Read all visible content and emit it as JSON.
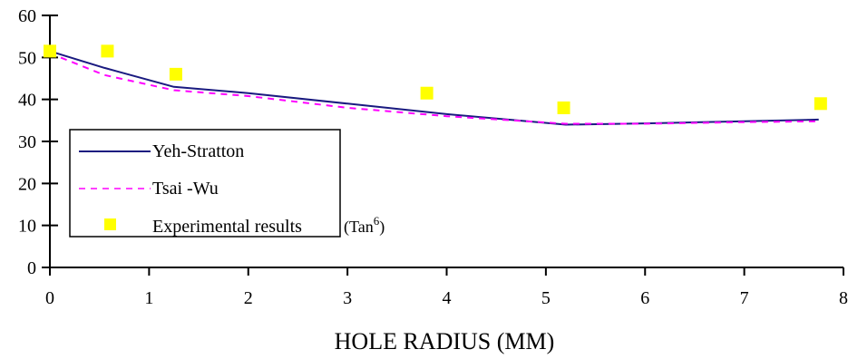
{
  "chart_data": {
    "type": "line",
    "title": "",
    "xlabel": "HOLE RADIUS (MM)",
    "ylabel": "",
    "xlim": [
      0,
      8
    ],
    "ylim": [
      0,
      60
    ],
    "xticks": [
      0,
      1,
      2,
      3,
      4,
      5,
      6,
      7,
      8
    ],
    "yticks": [
      0,
      10,
      20,
      30,
      40,
      50,
      60
    ],
    "grid": false,
    "legend_position": "bottom-left",
    "series": [
      {
        "name": "Yeh-Stratton",
        "style": "solid",
        "color": "#1a1a80",
        "x": [
          0,
          0.55,
          1.25,
          2.0,
          3.0,
          4.0,
          5.2,
          6.0,
          7.0,
          7.75
        ],
        "y": [
          51.5,
          47.5,
          43.0,
          41.5,
          39.0,
          36.5,
          34.0,
          34.3,
          34.8,
          35.2
        ]
      },
      {
        "name": "Tsai -Wu",
        "style": "dashed",
        "color": "#ff00ff",
        "x": [
          0,
          0.55,
          1.25,
          2.0,
          3.0,
          4.0,
          5.2,
          6.0,
          7.0,
          7.75
        ],
        "y": [
          51.0,
          45.8,
          42.2,
          40.8,
          38.0,
          36.0,
          34.2,
          34.2,
          34.6,
          34.8
        ]
      },
      {
        "name": "Experimental results",
        "name_suffix": "(Tan",
        "name_superscript": "6",
        "name_close": ")",
        "style": "markers",
        "marker": "square",
        "color": "#ffff00",
        "x": [
          0,
          0.58,
          1.27,
          3.8,
          5.18,
          7.77
        ],
        "y": [
          51.5,
          51.5,
          46.0,
          41.5,
          38.0,
          39.0
        ]
      }
    ]
  }
}
